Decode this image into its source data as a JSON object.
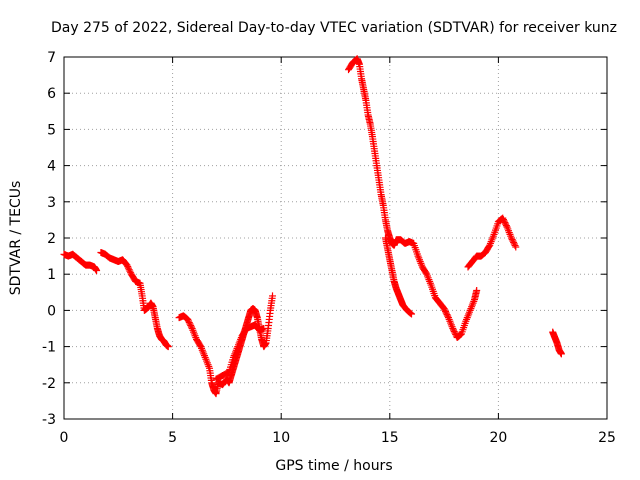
{
  "chart_data": {
    "type": "scatter",
    "title": "Day 275 of 2022, Sidereal Day-to-day VTEC variation (SDTVAR) for receiver kunz",
    "xlabel": "GPS time / hours",
    "ylabel": "SDTVAR / TECUs",
    "xlim": [
      0,
      25
    ],
    "ylim": [
      -3,
      7
    ],
    "xticks": [
      "0",
      "5",
      "10",
      "15",
      "20",
      "25"
    ],
    "yticks": [
      "-3",
      "-2",
      "-1",
      "0",
      "1",
      "2",
      "3",
      "4",
      "5",
      "6",
      "7"
    ],
    "grid": true,
    "marker": "+",
    "color": "#ff0000",
    "segments": [
      [
        [
          0.0,
          1.55
        ],
        [
          0.2,
          1.5
        ],
        [
          0.4,
          1.55
        ],
        [
          0.6,
          1.45
        ],
        [
          0.8,
          1.35
        ],
        [
          1.0,
          1.25
        ],
        [
          1.2,
          1.25
        ],
        [
          1.4,
          1.2
        ],
        [
          1.5,
          1.1
        ]
      ],
      [
        [
          1.7,
          1.6
        ],
        [
          1.9,
          1.55
        ],
        [
          2.1,
          1.45
        ],
        [
          2.3,
          1.4
        ],
        [
          2.5,
          1.35
        ],
        [
          2.7,
          1.4
        ],
        [
          2.9,
          1.25
        ],
        [
          3.1,
          1.0
        ],
        [
          3.3,
          0.8
        ],
        [
          3.5,
          0.75
        ],
        [
          3.6,
          0.4
        ],
        [
          3.7,
          0.0
        ],
        [
          3.8,
          0.05
        ],
        [
          3.9,
          0.1
        ],
        [
          4.0,
          0.2
        ],
        [
          4.1,
          0.1
        ],
        [
          4.2,
          -0.2
        ],
        [
          4.3,
          -0.5
        ],
        [
          4.4,
          -0.7
        ],
        [
          4.5,
          -0.8
        ],
        [
          4.6,
          -0.85
        ],
        [
          4.7,
          -0.95
        ],
        [
          4.8,
          -1.0
        ]
      ],
      [
        [
          5.3,
          -0.2
        ],
        [
          5.5,
          -0.15
        ],
        [
          5.7,
          -0.25
        ],
        [
          5.9,
          -0.5
        ],
        [
          6.1,
          -0.8
        ],
        [
          6.3,
          -1.0
        ],
        [
          6.5,
          -1.3
        ],
        [
          6.7,
          -1.6
        ],
        [
          6.8,
          -2.0
        ],
        [
          6.9,
          -2.2
        ],
        [
          7.0,
          -2.3
        ],
        [
          7.1,
          -2.0
        ],
        [
          7.3,
          -2.05
        ],
        [
          7.5,
          -1.9
        ],
        [
          7.6,
          -2.0
        ],
        [
          7.7,
          -1.8
        ],
        [
          7.8,
          -1.6
        ],
        [
          7.9,
          -1.4
        ],
        [
          8.0,
          -1.2
        ],
        [
          8.1,
          -1.0
        ],
        [
          8.2,
          -0.8
        ],
        [
          8.3,
          -0.6
        ],
        [
          8.4,
          -0.4
        ],
        [
          8.5,
          -0.2
        ],
        [
          8.6,
          0.0
        ],
        [
          8.7,
          0.05
        ],
        [
          8.8,
          0.0
        ],
        [
          8.9,
          -0.2
        ],
        [
          9.0,
          -0.5
        ],
        [
          9.1,
          -0.8
        ],
        [
          9.2,
          -1.0
        ],
        [
          9.3,
          -0.9
        ],
        [
          9.4,
          -0.5
        ],
        [
          9.5,
          0.0
        ],
        [
          9.6,
          0.4
        ]
      ],
      [
        [
          7.0,
          -1.9
        ],
        [
          7.3,
          -1.8
        ],
        [
          7.6,
          -1.7
        ],
        [
          7.8,
          -1.3
        ],
        [
          8.0,
          -1.0
        ],
        [
          8.2,
          -0.7
        ],
        [
          8.4,
          -0.5
        ],
        [
          8.6,
          -0.45
        ],
        [
          8.8,
          -0.4
        ],
        [
          9.0,
          -0.55
        ],
        [
          9.2,
          -0.5
        ]
      ],
      [
        [
          13.1,
          6.65
        ],
        [
          13.3,
          6.85
        ],
        [
          13.5,
          6.95
        ],
        [
          13.6,
          6.8
        ],
        [
          13.7,
          6.4
        ],
        [
          13.8,
          6.1
        ],
        [
          13.9,
          5.8
        ],
        [
          14.0,
          5.4
        ],
        [
          14.1,
          5.15
        ],
        [
          14.2,
          4.8
        ],
        [
          14.3,
          4.4
        ],
        [
          14.4,
          4.0
        ],
        [
          14.5,
          3.6
        ],
        [
          14.6,
          3.2
        ],
        [
          14.7,
          2.9
        ],
        [
          14.8,
          2.5
        ],
        [
          14.9,
          2.2
        ],
        [
          15.0,
          2.0
        ],
        [
          15.1,
          1.85
        ],
        [
          15.2,
          1.8
        ],
        [
          15.3,
          1.95
        ],
        [
          15.5,
          1.95
        ],
        [
          15.7,
          1.85
        ],
        [
          15.9,
          1.9
        ],
        [
          16.1,
          1.85
        ],
        [
          16.3,
          1.5
        ],
        [
          16.5,
          1.2
        ],
        [
          16.7,
          1.0
        ],
        [
          16.9,
          0.7
        ],
        [
          17.1,
          0.35
        ],
        [
          17.3,
          0.2
        ],
        [
          17.5,
          0.05
        ],
        [
          17.7,
          -0.2
        ],
        [
          17.9,
          -0.5
        ],
        [
          18.1,
          -0.75
        ],
        [
          18.3,
          -0.65
        ],
        [
          18.5,
          -0.3
        ],
        [
          18.7,
          0.0
        ],
        [
          18.9,
          0.3
        ],
        [
          19.0,
          0.55
        ]
      ],
      [
        [
          14.8,
          2.0
        ],
        [
          14.9,
          1.7
        ],
        [
          15.0,
          1.4
        ],
        [
          15.1,
          1.1
        ],
        [
          15.2,
          0.8
        ],
        [
          15.3,
          0.6
        ],
        [
          15.4,
          0.45
        ],
        [
          15.5,
          0.3
        ],
        [
          15.6,
          0.15
        ],
        [
          15.8,
          0.0
        ],
        [
          16.0,
          -0.1
        ]
      ],
      [
        [
          18.6,
          1.2
        ],
        [
          18.8,
          1.35
        ],
        [
          19.0,
          1.5
        ],
        [
          19.2,
          1.5
        ],
        [
          19.4,
          1.6
        ],
        [
          19.6,
          1.8
        ],
        [
          19.8,
          2.1
        ],
        [
          20.0,
          2.45
        ],
        [
          20.2,
          2.55
        ],
        [
          20.4,
          2.3
        ],
        [
          20.6,
          2.0
        ],
        [
          20.8,
          1.75
        ]
      ],
      [
        [
          22.5,
          -0.6
        ],
        [
          22.6,
          -0.75
        ],
        [
          22.7,
          -0.9
        ],
        [
          22.8,
          -1.1
        ],
        [
          22.9,
          -1.2
        ]
      ]
    ]
  }
}
